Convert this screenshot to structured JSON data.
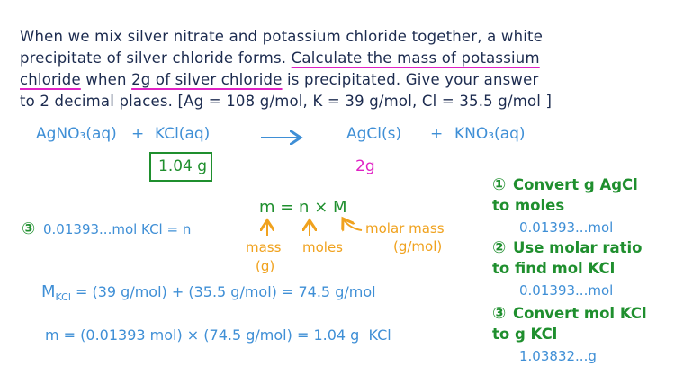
{
  "problem": {
    "lines": [
      [
        {
          "text": "When we mix silver nitrate and potassium chloride together, a white",
          "underline": false
        }
      ],
      [
        {
          "text": "precipitate of silver chloride forms. ",
          "underline": false
        },
        {
          "text": "Calculate the mass of potassium",
          "underline": true
        }
      ],
      [
        {
          "text": "chloride",
          "underline": true
        },
        {
          "text": " when ",
          "underline": false
        },
        {
          "text": "2g of silver chloride",
          "underline": true
        },
        {
          "text": " is precipitated. Give your answer",
          "underline": false
        }
      ],
      [
        {
          "text": "to 2 decimal places. [Ag = 108 g/mol, K = 39 g/mol, Cl = 35.5 g/mol ]",
          "underline": false
        }
      ]
    ]
  },
  "equation": {
    "reactant1": "AgNO₃(aq)",
    "plus1": "+",
    "reactant2": "KCl(aq)",
    "product1": "AgCl(s)",
    "plus2": "+",
    "product2": "KNO₃(aq)",
    "reactant2_answer": "1.04 g",
    "product1_given": "2g"
  },
  "formula": {
    "expression": "m = n × M",
    "mass_label": "mass",
    "mass_unit": "(g)",
    "moles_label": "moles",
    "molar_mass_label": "molar mass",
    "molar_mass_unit": "(g/mol)"
  },
  "step3_left": {
    "number": "③",
    "text": "0.01393...mol KCl = n"
  },
  "molar_mass_calc": {
    "symbol": "M",
    "subscript": "KCl",
    "text": " = (39 g/mol) + (35.5 g/mol) = 74.5 g/mol"
  },
  "mass_calc": "m = (0.01393 mol) × (74.5 g/mol) = 1.04 g  KCl",
  "steps": [
    {
      "number": "①",
      "lines": [
        "Convert g AgCl",
        "to moles"
      ],
      "result": "0.01393...mol"
    },
    {
      "number": "②",
      "lines": [
        "Use molar ratio",
        "to find mol KCl"
      ],
      "result": "0.01393...mol"
    },
    {
      "number": "③",
      "lines": [
        "Convert mol KCl",
        "to g KCl"
      ],
      "result": "1.03832...g"
    }
  ]
}
